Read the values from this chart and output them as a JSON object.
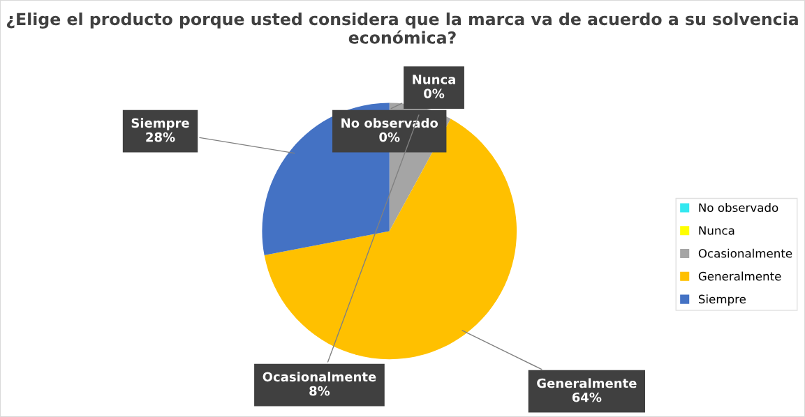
{
  "chart_data": {
    "type": "pie",
    "title": "¿Elige el producto porque usted considera que la marca va de acuerdo a su solvencia económica?",
    "categories": [
      "No observado",
      "Nunca",
      "Ocasionalmente",
      "Generalmente",
      "Siempre"
    ],
    "values": [
      0,
      0,
      8,
      64,
      28
    ],
    "value_labels": [
      "0%",
      "0%",
      "8%",
      "64%",
      "28%"
    ],
    "colors": [
      "#33e8f0",
      "#ffff00",
      "#a5a5a5",
      "#ffc000",
      "#4472c4"
    ],
    "legend": "right"
  }
}
